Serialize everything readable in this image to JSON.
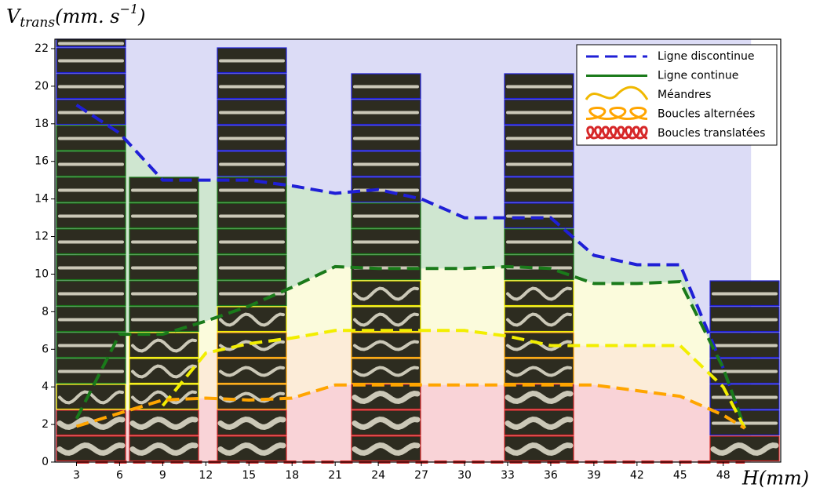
{
  "chart_data": {
    "type": "line",
    "y_label": {
      "main": "V",
      "sub": "trans",
      "rest": "(mm. s",
      "sup": "−1",
      "end": ")"
    },
    "x_label": "H(mm)",
    "xlim": [
      1.5,
      52
    ],
    "ylim": [
      0,
      22.5
    ],
    "xticks": [
      3,
      6,
      9,
      12,
      15,
      18,
      21,
      24,
      27,
      30,
      33,
      36,
      39,
      42,
      45,
      48
    ],
    "yticks": [
      0,
      2,
      4,
      6,
      8,
      10,
      12,
      14,
      16,
      18,
      20,
      22
    ],
    "legend_position": "upper right",
    "x": [
      3,
      6,
      9,
      12,
      15,
      18,
      21,
      24,
      27,
      30,
      33,
      36,
      39,
      42,
      45,
      48,
      49.5
    ],
    "series": [
      {
        "name": "Ligne discontinue",
        "color": "#1f1fd6",
        "text_color": "#1f3c88",
        "fill": "#dcdcf6",
        "values": [
          19,
          17.5,
          15,
          15,
          15,
          14.7,
          14.3,
          14.5,
          14,
          13,
          13,
          13,
          11,
          10.5,
          10.5,
          5,
          1.8
        ]
      },
      {
        "name": "Ligne continue",
        "color": "#1a7a1a",
        "text_color": "#2e8b2e",
        "fill": "#cfe6d0",
        "values": [
          2.3,
          6.8,
          6.8,
          7.5,
          8.3,
          9.3,
          10.4,
          10.3,
          10.3,
          10.3,
          10.4,
          10.3,
          9.5,
          9.5,
          9.6,
          5,
          1.8
        ]
      },
      {
        "name": "Méandres",
        "color": "#f2ee00",
        "text_color": "#e6b800",
        "fill": "#fbfbdc",
        "values": [
          null,
          null,
          3,
          5.8,
          6.3,
          6.6,
          7,
          7,
          7,
          7,
          6.7,
          6.2,
          6.2,
          6.2,
          6.2,
          4,
          1.8
        ]
      },
      {
        "name": "Boucles alternées",
        "color": "#ffa500",
        "text_color": "#e8702a",
        "fill": "#fcecd8",
        "values": [
          1.9,
          2.6,
          3.3,
          3.4,
          3.3,
          3.4,
          4.1,
          4.1,
          4.1,
          4.1,
          4.1,
          4.1,
          4.1,
          3.8,
          3.5,
          2.5,
          1.8
        ]
      },
      {
        "name": "Boucles translatées",
        "color": "#d62728",
        "text_color": "#d42020",
        "fill": "#f9d3d7",
        "values": [
          0,
          0,
          0,
          0,
          0,
          0,
          0,
          0,
          0,
          0,
          0,
          0,
          0,
          0,
          0,
          0,
          0
        ]
      }
    ]
  }
}
